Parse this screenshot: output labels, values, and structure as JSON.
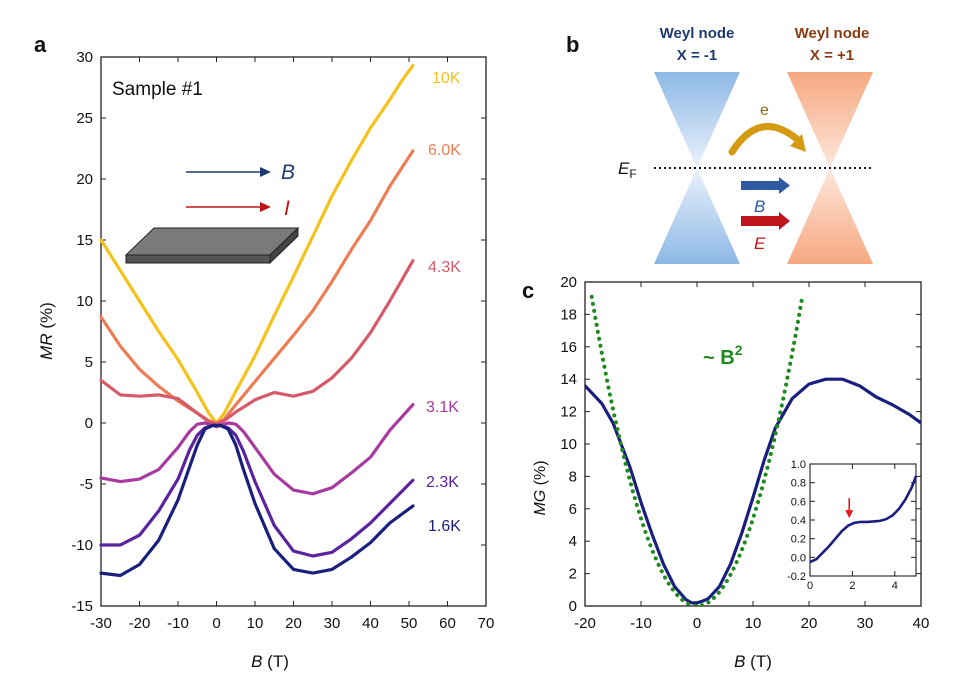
{
  "panels": {
    "a": "a",
    "b": "b",
    "c": "c"
  },
  "chart_data": [
    {
      "type": "line",
      "panel": "a",
      "title": "",
      "sample_label": "Sample #1",
      "xlabel_var": "B",
      "xlabel_unit": " (T)",
      "ylabel_var": "MR",
      "ylabel_unit": " (%)",
      "xlim": [
        -30,
        70
      ],
      "ylim": [
        -15,
        30
      ],
      "xticks": [
        -30,
        -20,
        -10,
        0,
        10,
        20,
        30,
        40,
        50,
        60,
        70
      ],
      "yticks": [
        -15,
        -10,
        -5,
        0,
        5,
        10,
        15,
        20,
        25,
        30
      ],
      "inset_legend": {
        "b_label": "B",
        "i_label": "I",
        "b_color": "#1f3a6e",
        "i_color": "#c0141c"
      },
      "series": [
        {
          "name": "10K",
          "color": "#f5c21b",
          "x": [
            -30,
            -25,
            -20,
            -15,
            -10,
            -5,
            -2,
            0,
            2,
            5,
            10,
            15,
            20,
            25,
            30,
            35,
            40,
            45,
            48,
            51
          ],
          "y": [
            15,
            12.5,
            10,
            7.5,
            5.2,
            2.5,
            0.8,
            0,
            0.8,
            2.6,
            5.5,
            8.8,
            12,
            15.3,
            18.6,
            21.5,
            24.2,
            26.5,
            28,
            29.3
          ]
        },
        {
          "name": "6.0K",
          "color": "#ec7d55",
          "x": [
            -30,
            -25,
            -20,
            -15,
            -10,
            -5,
            -2,
            0,
            2,
            5,
            10,
            15,
            20,
            25,
            30,
            35,
            40,
            45,
            51
          ],
          "y": [
            8.7,
            6.3,
            4.4,
            3,
            1.8,
            0.8,
            0.2,
            0,
            0.3,
            1.5,
            3.4,
            5.3,
            7.2,
            9.2,
            11.6,
            14.2,
            16.6,
            19.4,
            22.3
          ]
        },
        {
          "name": "4.3K",
          "color": "#d75a6b",
          "x": [
            -30,
            -25,
            -20,
            -15,
            -10,
            -5,
            -2,
            0,
            2,
            5,
            10,
            15,
            20,
            25,
            30,
            35,
            40,
            45,
            51
          ],
          "y": [
            3.5,
            2.3,
            2.2,
            2.3,
            2,
            0.8,
            0.1,
            -0.1,
            0.2,
            0.9,
            1.9,
            2.5,
            2.2,
            2.6,
            3.7,
            5.3,
            7.4,
            10,
            13.3
          ]
        },
        {
          "name": "3.1K",
          "color": "#a83a9f",
          "x": [
            -30,
            -25,
            -20,
            -15,
            -10,
            -7,
            -5,
            -3,
            -1,
            0,
            1,
            3,
            5,
            7,
            10,
            15,
            20,
            25,
            30,
            35,
            40,
            45,
            51
          ],
          "y": [
            -4.5,
            -4.8,
            -4.6,
            -3.8,
            -2,
            -0.7,
            -0.1,
            0,
            -0.2,
            -0.3,
            -0.2,
            0,
            -0.1,
            -0.7,
            -2,
            -4.2,
            -5.5,
            -5.8,
            -5.3,
            -4.1,
            -2.8,
            -0.6,
            1.5
          ]
        },
        {
          "name": "2.3K",
          "color": "#5a23a0",
          "x": [
            -30,
            -25,
            -20,
            -15,
            -10,
            -7,
            -5,
            -3,
            -1,
            0,
            1,
            3,
            5,
            7,
            10,
            15,
            20,
            25,
            30,
            35,
            40,
            45,
            51
          ],
          "y": [
            -10,
            -10,
            -9.2,
            -7.2,
            -4.6,
            -2.2,
            -1,
            -0.4,
            -0.2,
            -0.2,
            -0.2,
            -0.4,
            -1,
            -2.3,
            -4.8,
            -8.4,
            -10.5,
            -10.9,
            -10.6,
            -9.5,
            -8.2,
            -6.6,
            -4.7
          ]
        },
        {
          "name": "1.6K",
          "color": "#1a1f7e",
          "x": [
            -30,
            -25,
            -20,
            -15,
            -10,
            -7,
            -5,
            -3,
            -1,
            0,
            1,
            3,
            5,
            7,
            10,
            15,
            20,
            25,
            30,
            35,
            40,
            45,
            51
          ],
          "y": [
            -12.3,
            -12.5,
            -11.6,
            -9.6,
            -6.3,
            -3.6,
            -1.8,
            -0.5,
            -0.2,
            -0.2,
            -0.2,
            -0.5,
            -1.8,
            -3.8,
            -6.6,
            -10.3,
            -12,
            -12.3,
            -12,
            -11,
            -9.8,
            -8.2,
            -6.8
          ]
        }
      ]
    },
    {
      "type": "diagram",
      "panel": "b",
      "node_left_title": "Weyl node",
      "node_left_chirality": "X = -1",
      "node_right_title": "Weyl node",
      "node_right_chirality": "X = +1",
      "fermi_label": "E",
      "fermi_sub": "F",
      "electron_label": "e",
      "b_label": "B",
      "e_label": "E",
      "colors": {
        "left_cone": "#9fc2e8",
        "right_cone": "#f6b48f",
        "left_title": "#1f3a6e",
        "right_title": "#8b3a12",
        "arrow_e": "#d49a12",
        "arrow_b": "#2d5aa0",
        "arrow_E": "#c0141c"
      }
    },
    {
      "type": "line",
      "panel": "c",
      "xlabel_var": "B",
      "xlabel_unit": " (T)",
      "ylabel_var": "MG",
      "ylabel_unit": " (%)",
      "xlim": [
        -20,
        40
      ],
      "ylim": [
        0,
        20
      ],
      "xticks": [
        -20,
        -10,
        0,
        10,
        20,
        30,
        40
      ],
      "yticks": [
        0,
        2,
        4,
        6,
        8,
        10,
        12,
        14,
        16,
        18,
        20
      ],
      "fit_label_prefix": "~ B",
      "fit_label_exp": "2",
      "series": [
        {
          "name": "MG",
          "color": "#1a1f7e",
          "x": [
            -20,
            -17,
            -15,
            -12,
            -10,
            -8,
            -6,
            -4,
            -2,
            -1,
            0,
            1,
            2,
            4,
            6,
            8,
            10,
            12,
            14,
            17,
            20,
            23,
            26,
            29,
            32,
            35,
            38,
            40
          ],
          "y": [
            13.6,
            12.5,
            11.3,
            8.6,
            6.4,
            4.4,
            2.6,
            1.2,
            0.4,
            0.2,
            0.2,
            0.3,
            0.45,
            1.2,
            2.6,
            4.5,
            6.7,
            9,
            11,
            12.8,
            13.7,
            14,
            14,
            13.6,
            12.9,
            12.4,
            11.8,
            11.3
          ]
        },
        {
          "name": "~ B^2 fit",
          "color": "#1e8a1e",
          "dotted": true,
          "coef": 0.054,
          "xrange": [
            -18.8,
            18.8
          ]
        }
      ],
      "inset": {
        "xlim": [
          0,
          5
        ],
        "ylim": [
          -0.2,
          1.0
        ],
        "xticks": [
          0,
          2,
          4
        ],
        "yticks": [
          -0.2,
          0.0,
          0.2,
          0.4,
          0.6,
          0.8,
          1.0
        ],
        "ytick_labels": [
          "-0.2",
          "0.0",
          "0.2",
          "0.4",
          "0.6",
          "0.8",
          "1.0"
        ],
        "arrow_x": 1.85,
        "arrow_color": "#e8181c",
        "x": [
          0,
          0.3,
          0.6,
          0.9,
          1.2,
          1.5,
          1.8,
          2.1,
          2.4,
          2.7,
          3.0,
          3.3,
          3.6,
          3.9,
          4.2,
          4.5,
          4.8,
          5.0
        ],
        "y": [
          -0.05,
          -0.02,
          0.05,
          0.12,
          0.2,
          0.28,
          0.34,
          0.37,
          0.38,
          0.38,
          0.385,
          0.39,
          0.41,
          0.45,
          0.52,
          0.62,
          0.75,
          0.87
        ]
      }
    }
  ]
}
